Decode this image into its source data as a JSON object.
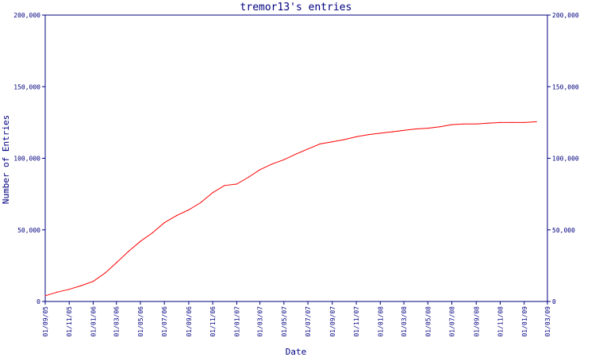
{
  "chart_data": {
    "type": "line",
    "title": "tremor13's entries",
    "xlabel": "Date",
    "ylabel": "Number of Entries",
    "ylim": [
      0,
      200000
    ],
    "yticks": [
      0,
      50000,
      100000,
      150000,
      200000
    ],
    "ytick_labels": [
      "0",
      "50,000",
      "100,000",
      "150,000",
      "200,000"
    ],
    "xlim": [
      "2005-09-01",
      "2009-03-01"
    ],
    "xtick_dates": [
      "2005-09-01",
      "2005-11-01",
      "2006-01-01",
      "2006-03-01",
      "2006-05-01",
      "2006-07-01",
      "2006-09-01",
      "2006-11-01",
      "2007-01-01",
      "2007-03-01",
      "2007-05-01",
      "2007-07-01",
      "2007-09-01",
      "2007-11-01",
      "2008-01-01",
      "2008-03-01",
      "2008-05-01",
      "2008-07-01",
      "2008-09-01",
      "2008-11-01",
      "2009-01-01",
      "2009-03-01"
    ],
    "xtick_labels": [
      "01/09/05",
      "01/11/05",
      "01/01/06",
      "01/03/06",
      "01/05/06",
      "01/07/06",
      "01/09/06",
      "01/11/06",
      "01/01/07",
      "01/03/07",
      "01/05/07",
      "01/07/07",
      "01/09/07",
      "01/11/07",
      "01/01/08",
      "01/03/08",
      "01/05/08",
      "01/07/08",
      "01/09/08",
      "01/11/08",
      "01/01/09",
      "01/03/09"
    ],
    "grid": false,
    "series": [
      {
        "color": "#ff0000",
        "x": [
          "2005-09-01",
          "2005-10-01",
          "2005-11-01",
          "2005-12-01",
          "2006-01-01",
          "2006-02-01",
          "2006-03-01",
          "2006-04-01",
          "2006-05-01",
          "2006-06-01",
          "2006-07-01",
          "2006-08-01",
          "2006-09-01",
          "2006-10-01",
          "2006-11-01",
          "2006-12-01",
          "2007-01-01",
          "2007-02-01",
          "2007-03-01",
          "2007-04-01",
          "2007-05-01",
          "2007-06-01",
          "2007-07-01",
          "2007-08-01",
          "2007-09-01",
          "2007-10-01",
          "2007-11-01",
          "2007-12-01",
          "2008-01-01",
          "2008-02-01",
          "2008-03-01",
          "2008-04-01",
          "2008-05-01",
          "2008-06-01",
          "2008-07-01",
          "2008-08-01",
          "2008-09-01",
          "2008-10-01",
          "2008-11-01",
          "2008-12-01",
          "2009-01-01",
          "2009-02-01"
        ],
        "y": [
          4000,
          6500,
          8500,
          11000,
          14000,
          20000,
          27000,
          35000,
          42000,
          48000,
          55000,
          60000,
          64000,
          69000,
          76000,
          81000,
          82000,
          87000,
          92000,
          96000,
          99000,
          103000,
          106500,
          110000,
          111500,
          113000,
          115000,
          116500,
          117500,
          118500,
          119500,
          120500,
          121000,
          122000,
          123500,
          124000,
          124000,
          124500,
          125000,
          125000,
          125000,
          125500
        ]
      }
    ]
  }
}
